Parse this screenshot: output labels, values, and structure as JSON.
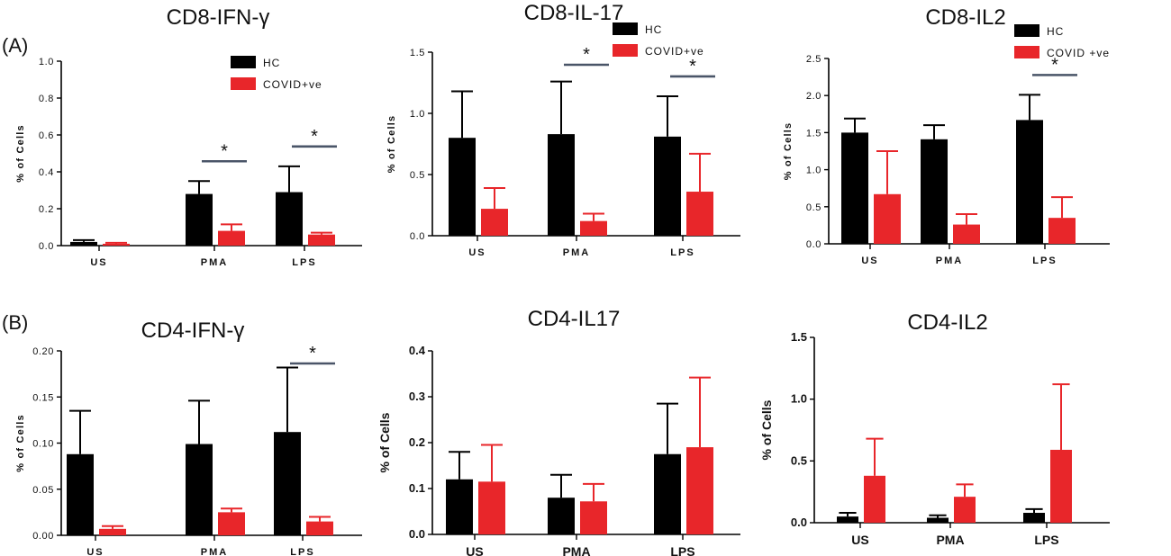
{
  "figure": {
    "panel_labels": [
      "(A)",
      "(B)"
    ]
  },
  "colors": {
    "hc": "#000000",
    "covid": "#e8262a",
    "sig_line": "#4a5568"
  },
  "chart_data": [
    {
      "type": "bar",
      "title": "CD8-IFN-γ",
      "ylabel": "% of Cells",
      "categories": [
        "US",
        "PMA",
        "LPS"
      ],
      "ylim": [
        0,
        1.0
      ],
      "yticks": [
        "0.0",
        "0.2",
        "0.4",
        "0.6",
        "0.8",
        "1.0"
      ],
      "series": [
        {
          "name": "HC",
          "color": "#000000",
          "values": [
            0.02,
            0.28,
            0.29
          ],
          "errors": [
            0.01,
            0.07,
            0.14
          ]
        },
        {
          "name": "COVID+ve",
          "color": "#e8262a",
          "values": [
            0.01,
            0.08,
            0.06
          ],
          "errors": [
            0.005,
            0.035,
            0.01
          ]
        }
      ],
      "significance": [
        {
          "category": "PMA",
          "label": "*"
        },
        {
          "category": "LPS",
          "label": "*"
        }
      ],
      "legend": true
    },
    {
      "type": "bar",
      "title": "CD8-IL-17",
      "ylabel": "% of Cells",
      "categories": [
        "US",
        "PMA",
        "LPS"
      ],
      "ylim": [
        0,
        1.5
      ],
      "yticks": [
        "0.0",
        "0.5",
        "1.0",
        "1.5"
      ],
      "series": [
        {
          "name": "HC",
          "color": "#000000",
          "values": [
            0.8,
            0.83,
            0.81
          ],
          "errors": [
            0.38,
            0.43,
            0.33
          ]
        },
        {
          "name": "COVID+ve",
          "color": "#e8262a",
          "values": [
            0.22,
            0.12,
            0.36
          ],
          "errors": [
            0.17,
            0.06,
            0.31
          ]
        }
      ],
      "significance": [
        {
          "category": "PMA",
          "label": "*"
        },
        {
          "category": "LPS",
          "label": "*"
        }
      ],
      "legend": true
    },
    {
      "type": "bar",
      "title": "CD8-IL2",
      "ylabel": "% of Cells",
      "categories": [
        "US",
        "PMA",
        "LPS"
      ],
      "ylim": [
        0,
        2.5
      ],
      "yticks": [
        "0.0",
        "0.5",
        "1.0",
        "1.5",
        "2.0",
        "2.5"
      ],
      "series": [
        {
          "name": "HC",
          "color": "#000000",
          "values": [
            1.5,
            1.41,
            1.67
          ],
          "errors": [
            0.19,
            0.19,
            0.34
          ]
        },
        {
          "name": "COVID +ve",
          "color": "#e8262a",
          "values": [
            0.67,
            0.26,
            0.35
          ],
          "errors": [
            0.58,
            0.14,
            0.28
          ]
        }
      ],
      "significance": [
        {
          "category": "LPS",
          "label": "*"
        }
      ],
      "legend": true
    },
    {
      "type": "bar",
      "title": "CD4-IFN-γ",
      "ylabel": "% of Cells",
      "categories": [
        "US",
        "PMA",
        "LPS"
      ],
      "ylim": [
        0,
        0.2
      ],
      "yticks": [
        "0.00",
        "0.05",
        "0.10",
        "0.15",
        "0.20"
      ],
      "series": [
        {
          "name": "HC",
          "color": "#000000",
          "values": [
            0.088,
            0.099,
            0.112
          ],
          "errors": [
            0.047,
            0.047,
            0.07
          ]
        },
        {
          "name": "COVID+ve",
          "color": "#e8262a",
          "values": [
            0.007,
            0.025,
            0.015
          ],
          "errors": [
            0.003,
            0.004,
            0.005
          ]
        }
      ],
      "significance": [
        {
          "category": "LPS",
          "label": "*"
        }
      ],
      "legend": false
    },
    {
      "type": "bar",
      "title": "CD4-IL17",
      "ylabel": "% of Cells",
      "categories": [
        "US",
        "PMA",
        "LPS"
      ],
      "ylim": [
        0,
        0.4
      ],
      "yticks": [
        "0.0",
        "0.1",
        "0.2",
        "0.3",
        "0.4"
      ],
      "series": [
        {
          "name": "HC",
          "color": "#000000",
          "values": [
            0.12,
            0.08,
            0.175
          ],
          "errors": [
            0.06,
            0.05,
            0.11
          ]
        },
        {
          "name": "COVID+ve",
          "color": "#e8262a",
          "values": [
            0.115,
            0.072,
            0.19
          ],
          "errors": [
            0.08,
            0.038,
            0.152
          ]
        }
      ],
      "significance": [],
      "legend": false
    },
    {
      "type": "bar",
      "title": "CD4-IL2",
      "ylabel": "% of Cells",
      "categories": [
        "US",
        "PMA",
        "LPS"
      ],
      "ylim": [
        0,
        1.5
      ],
      "yticks": [
        "0.0",
        "0.5",
        "1.0",
        "1.5"
      ],
      "series": [
        {
          "name": "HC",
          "color": "#000000",
          "values": [
            0.05,
            0.04,
            0.08
          ],
          "errors": [
            0.03,
            0.02,
            0.03
          ]
        },
        {
          "name": "COVID+ve",
          "color": "#e8262a",
          "values": [
            0.38,
            0.21,
            0.59
          ],
          "errors": [
            0.3,
            0.1,
            0.53
          ]
        }
      ],
      "significance": [],
      "legend": false
    }
  ]
}
